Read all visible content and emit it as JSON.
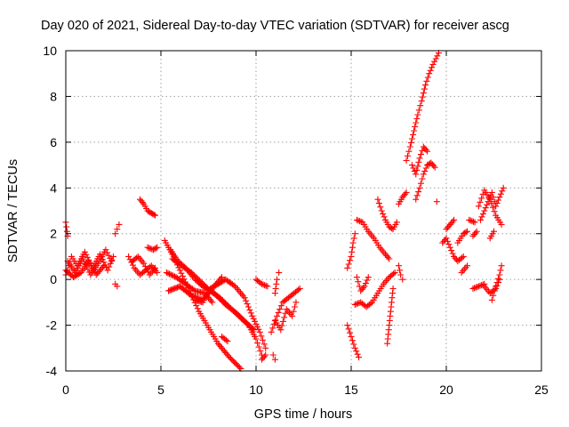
{
  "chart_data": {
    "type": "scatter",
    "title": "Day 020 of 2021, Sidereal Day-to-day VTEC variation (SDTVAR) for receiver ascg",
    "xlabel": "GPS time / hours",
    "ylabel": "SDTVAR / TECUs",
    "xlim": [
      0,
      25
    ],
    "ylim": [
      -4,
      10
    ],
    "xticks": [
      "0",
      "5",
      "10",
      "15",
      "20",
      "25"
    ],
    "yticks": [
      "-4",
      "-2",
      "0",
      "2",
      "4",
      "6",
      "8",
      "10"
    ],
    "grid": true,
    "marker": "+",
    "color": "#ff0000",
    "tracks": [
      {
        "x": [
          0.0,
          0.1
        ],
        "y": [
          2.5,
          1.9
        ]
      },
      {
        "x": [
          0.0,
          0.3,
          0.6,
          1.0,
          1.4,
          1.8,
          2.2,
          2.5
        ],
        "y": [
          0.2,
          1.0,
          0.6,
          1.2,
          0.5,
          1.1,
          0.4,
          1.0
        ]
      },
      {
        "x": [
          0.1,
          0.5,
          0.9,
          1.3,
          1.7,
          2.1,
          2.4
        ],
        "y": [
          0.8,
          0.3,
          0.9,
          0.2,
          0.7,
          1.3,
          0.8
        ]
      },
      {
        "x": [
          0.0,
          0.4,
          0.8,
          1.2,
          1.6,
          2.0
        ],
        "y": [
          0.4,
          0.1,
          0.3,
          0.8,
          0.2,
          0.6
        ]
      },
      {
        "x": [
          2.6,
          2.7,
          2.8
        ],
        "y": [
          2.0,
          2.2,
          2.4
        ]
      },
      {
        "x": [
          2.6,
          2.7
        ],
        "y": [
          -0.2,
          -0.3
        ]
      },
      {
        "x": [
          3.3,
          3.6,
          3.9,
          4.2,
          4.5,
          4.8
        ],
        "y": [
          1.0,
          0.5,
          0.2,
          0.4,
          0.6,
          0.3
        ]
      },
      {
        "x": [
          3.5,
          3.8,
          4.1,
          4.4,
          4.7
        ],
        "y": [
          0.8,
          1.0,
          0.7,
          0.2,
          0.5
        ]
      },
      {
        "x": [
          3.9,
          4.1,
          4.3,
          4.5,
          4.7
        ],
        "y": [
          3.5,
          3.3,
          3.0,
          2.9,
          2.8
        ]
      },
      {
        "x": [
          4.3,
          4.6,
          4.8
        ],
        "y": [
          1.4,
          1.3,
          1.4
        ]
      },
      {
        "x": [
          5.2,
          5.6,
          6.0,
          6.5,
          7.0,
          7.5,
          8.0,
          8.6,
          9.2
        ],
        "y": [
          1.7,
          1.1,
          0.4,
          -0.5,
          -1.4,
          -2.1,
          -2.8,
          -3.4,
          -3.9
        ]
      },
      {
        "x": [
          5.3,
          5.8,
          6.3,
          6.8,
          7.3,
          7.7
        ],
        "y": [
          0.3,
          0.1,
          -0.2,
          -0.5,
          -0.6,
          -1.0
        ]
      },
      {
        "x": [
          5.5,
          5.9,
          6.3,
          6.8,
          7.2,
          7.8,
          8.4,
          9.0,
          9.5,
          9.9
        ],
        "y": [
          1.3,
          0.8,
          0.5,
          0.0,
          -0.3,
          -0.6,
          -1.1,
          -1.5,
          -1.9,
          -2.2
        ]
      },
      {
        "x": [
          5.6,
          6.1,
          6.6,
          7.1,
          7.6,
          8.1,
          8.6,
          9.1,
          9.6,
          10.0,
          10.3
        ],
        "y": [
          0.9,
          0.6,
          0.3,
          -0.1,
          -0.5,
          -0.8,
          -1.2,
          -1.6,
          -2.0,
          -2.6,
          -3.3
        ]
      },
      {
        "x": [
          5.4,
          6.0,
          6.6,
          7.2,
          7.8,
          8.2
        ],
        "y": [
          -0.5,
          -0.3,
          -0.7,
          -0.9,
          -0.3,
          0.1
        ]
      },
      {
        "x": [
          6.8,
          7.2,
          7.6,
          8.0,
          8.4,
          8.9,
          9.4,
          9.8,
          10.2,
          10.5
        ],
        "y": [
          -0.9,
          -1.0,
          -0.4,
          -0.2,
          0.0,
          -0.3,
          -0.8,
          -1.6,
          -2.3,
          -3.0
        ]
      },
      {
        "x": [
          8.2,
          8.5
        ],
        "y": [
          -2.5,
          -2.7
        ]
      },
      {
        "x": [
          10.0,
          10.3,
          10.6
        ],
        "y": [
          0.0,
          -0.2,
          -0.3
        ]
      },
      {
        "x": [
          10.3,
          10.5
        ],
        "y": [
          -3.5,
          -3.3
        ]
      },
      {
        "x": [
          10.8,
          11.1,
          11.4,
          11.7,
          12.0,
          12.3
        ],
        "y": [
          -2.3,
          -1.6,
          -1.0,
          -0.8,
          -0.6,
          -0.4
        ]
      },
      {
        "x": [
          11.0,
          11.3,
          11.6,
          11.9,
          12.1
        ],
        "y": [
          -1.8,
          -2.2,
          -1.3,
          -1.6,
          -1.0
        ]
      },
      {
        "x": [
          11.0,
          11.1,
          11.2
        ],
        "y": [
          -0.6,
          0.0,
          0.3
        ]
      },
      {
        "x": [
          10.9,
          11.0
        ],
        "y": [
          -3.3,
          -3.5
        ]
      },
      {
        "x": [
          14.8,
          15.0,
          15.2,
          15.4
        ],
        "y": [
          -2.0,
          -2.5,
          -3.0,
          -3.4
        ]
      },
      {
        "x": [
          14.8,
          15.0,
          15.1,
          15.2
        ],
        "y": [
          0.5,
          1.0,
          1.6,
          2.0
        ]
      },
      {
        "x": [
          15.3,
          15.5,
          15.7,
          15.9
        ],
        "y": [
          0.1,
          -0.5,
          -0.3,
          0.1
        ]
      },
      {
        "x": [
          15.2,
          15.5,
          15.8,
          16.1,
          16.4,
          16.7,
          17.0,
          17.3
        ],
        "y": [
          -1.1,
          -1.0,
          -1.2,
          -1.0,
          -0.6,
          -0.2,
          0.1,
          0.3
        ]
      },
      {
        "x": [
          15.3,
          15.6,
          15.9,
          16.2,
          16.5,
          16.8,
          17.0
        ],
        "y": [
          2.6,
          2.5,
          2.1,
          1.8,
          1.4,
          1.1,
          0.9
        ]
      },
      {
        "x": [
          16.4,
          16.6,
          16.8,
          17.0,
          17.2,
          17.4
        ],
        "y": [
          3.5,
          3.0,
          2.6,
          2.3,
          2.2,
          2.5
        ]
      },
      {
        "x": [
          16.9,
          17.0,
          17.1,
          17.2
        ],
        "y": [
          -2.8,
          -2.0,
          -1.2,
          -0.4
        ]
      },
      {
        "x": [
          17.5,
          17.6,
          17.7
        ],
        "y": [
          0.6,
          0.2,
          0.0
        ]
      },
      {
        "x": [
          17.5,
          17.7,
          17.9
        ],
        "y": [
          3.3,
          3.6,
          3.8
        ]
      },
      {
        "x": [
          17.9,
          18.1,
          18.3,
          18.5,
          18.7,
          18.9,
          19.1,
          19.3,
          19.6
        ],
        "y": [
          5.2,
          5.8,
          6.5,
          7.2,
          7.8,
          8.5,
          9.0,
          9.4,
          9.9
        ]
      },
      {
        "x": [
          18.2,
          18.4,
          18.6,
          18.8,
          19.0
        ],
        "y": [
          5.0,
          4.6,
          5.3,
          5.8,
          5.6
        ]
      },
      {
        "x": [
          18.4,
          18.6,
          18.8,
          19.0,
          19.2,
          19.4
        ],
        "y": [
          3.5,
          4.0,
          4.6,
          5.0,
          5.1,
          4.9
        ]
      },
      {
        "x": [
          19.5
        ],
        "y": [
          3.4
        ]
      },
      {
        "x": [
          19.8,
          20.0,
          20.2,
          20.4,
          20.6,
          20.9
        ],
        "y": [
          1.6,
          1.8,
          1.4,
          1.0,
          0.8,
          1.0
        ]
      },
      {
        "x": [
          20.0,
          20.2,
          20.4
        ],
        "y": [
          2.2,
          2.4,
          2.6
        ]
      },
      {
        "x": [
          20.6,
          20.9,
          21.1
        ],
        "y": [
          1.6,
          2.0,
          2.1
        ]
      },
      {
        "x": [
          20.8,
          21.1
        ],
        "y": [
          0.3,
          0.6
        ]
      },
      {
        "x": [
          21.2,
          21.5
        ],
        "y": [
          2.6,
          2.5
        ]
      },
      {
        "x": [
          21.4,
          21.6
        ],
        "y": [
          1.9,
          2.1
        ]
      },
      {
        "x": [
          21.4,
          21.7,
          22.0
        ],
        "y": [
          -0.4,
          -0.3,
          -0.2
        ]
      },
      {
        "x": [
          21.8,
          22.0,
          22.2,
          22.4,
          22.6,
          22.8,
          23.0
        ],
        "y": [
          2.6,
          3.0,
          3.4,
          3.8,
          3.2,
          3.6,
          4.0
        ]
      },
      {
        "x": [
          21.7,
          22.0,
          22.3,
          22.6,
          22.9
        ],
        "y": [
          3.2,
          3.9,
          3.5,
          2.8,
          2.4
        ]
      },
      {
        "x": [
          22.0,
          22.3,
          22.6,
          22.8
        ],
        "y": [
          -0.3,
          -0.6,
          -0.4,
          0.0
        ]
      },
      {
        "x": [
          22.4,
          22.6,
          22.8,
          22.9
        ],
        "y": [
          -0.9,
          -0.3,
          0.2,
          0.6
        ]
      },
      {
        "x": [
          22.3,
          22.5
        ],
        "y": [
          1.8,
          2.1
        ]
      }
    ]
  }
}
